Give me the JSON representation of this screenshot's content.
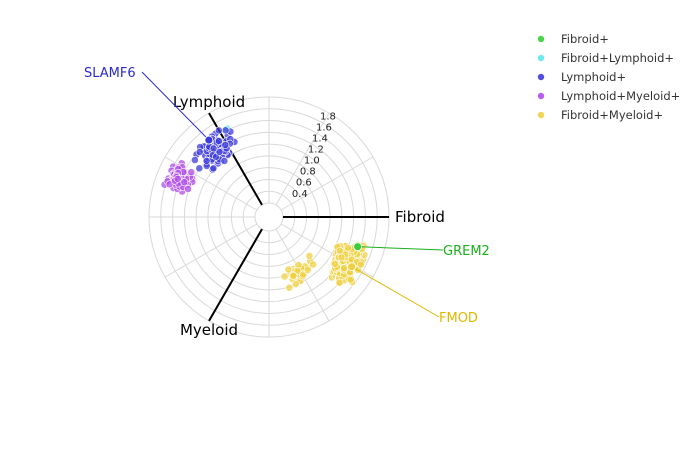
{
  "chart_data": {
    "type": "scatter",
    "subtype": "radial_polar",
    "radial_axis": {
      "tick_labels": [
        "0.4",
        "0.6",
        "0.8",
        "1.0",
        "1.2",
        "1.4",
        "1.6",
        "1.8"
      ],
      "tick_values": [
        0.4,
        0.6,
        0.8,
        1.0,
        1.2,
        1.4,
        1.6,
        1.8
      ],
      "range": [
        0.2,
        2.0
      ]
    },
    "axes": [
      {
        "label": "Fibroid",
        "angle_deg": 0
      },
      {
        "label": "Lymphoid",
        "angle_deg": 120
      },
      {
        "label": "Myeloid",
        "angle_deg": 240
      }
    ],
    "grid": true,
    "legend_position": "top-right",
    "series": [
      {
        "name": "Fibroid+",
        "color": "#3acd3a",
        "clusters": [
          {
            "count": 6,
            "angle_deg": [
              -36,
              -22
            ],
            "r": [
              1.3,
              1.62
            ]
          }
        ]
      },
      {
        "name": "Fibroid+Lymphoid+",
        "color": "#5be7ea",
        "clusters": [
          {
            "count": 2,
            "angle_deg": [
              112,
              118
            ],
            "r": [
              1.58,
              1.66
            ]
          }
        ]
      },
      {
        "name": "Lymphoid+",
        "color": "#3d3bd9",
        "clusters": [
          {
            "count": 120,
            "angle_deg": [
              110,
              147
            ],
            "r": [
              1.12,
              1.72
            ]
          }
        ]
      },
      {
        "name": "Lymphoid+Myeloid+",
        "color": "#b04ee8",
        "clusters": [
          {
            "count": 75,
            "angle_deg": [
              146,
              166
            ],
            "r": [
              1.38,
              1.92
            ]
          }
        ]
      },
      {
        "name": "Fibroid+Myeloid+",
        "color": "#efd044",
        "clusters": [
          {
            "count": 230,
            "angle_deg": [
              -46,
              -14
            ],
            "r": [
              1.18,
              1.8
            ]
          },
          {
            "count": 30,
            "angle_deg": [
              -88,
              -40
            ],
            "r": [
              0.76,
              1.28
            ]
          }
        ]
      }
    ],
    "annotations": [
      {
        "text": "SLAMF6",
        "series": "Lymphoid+",
        "point": {
          "angle_deg": 128,
          "r": 1.62
        },
        "color": "#2a2ad0"
      },
      {
        "text": "GREM2",
        "series": "Fibroid+",
        "point": {
          "angle_deg": -18.5,
          "r": 1.55
        },
        "color": "#1ab01a"
      },
      {
        "text": "FMOD",
        "series": "Fibroid+Myeloid+",
        "point": {
          "angle_deg": -31,
          "r": 1.6
        },
        "color": "#e0b800"
      }
    ]
  }
}
